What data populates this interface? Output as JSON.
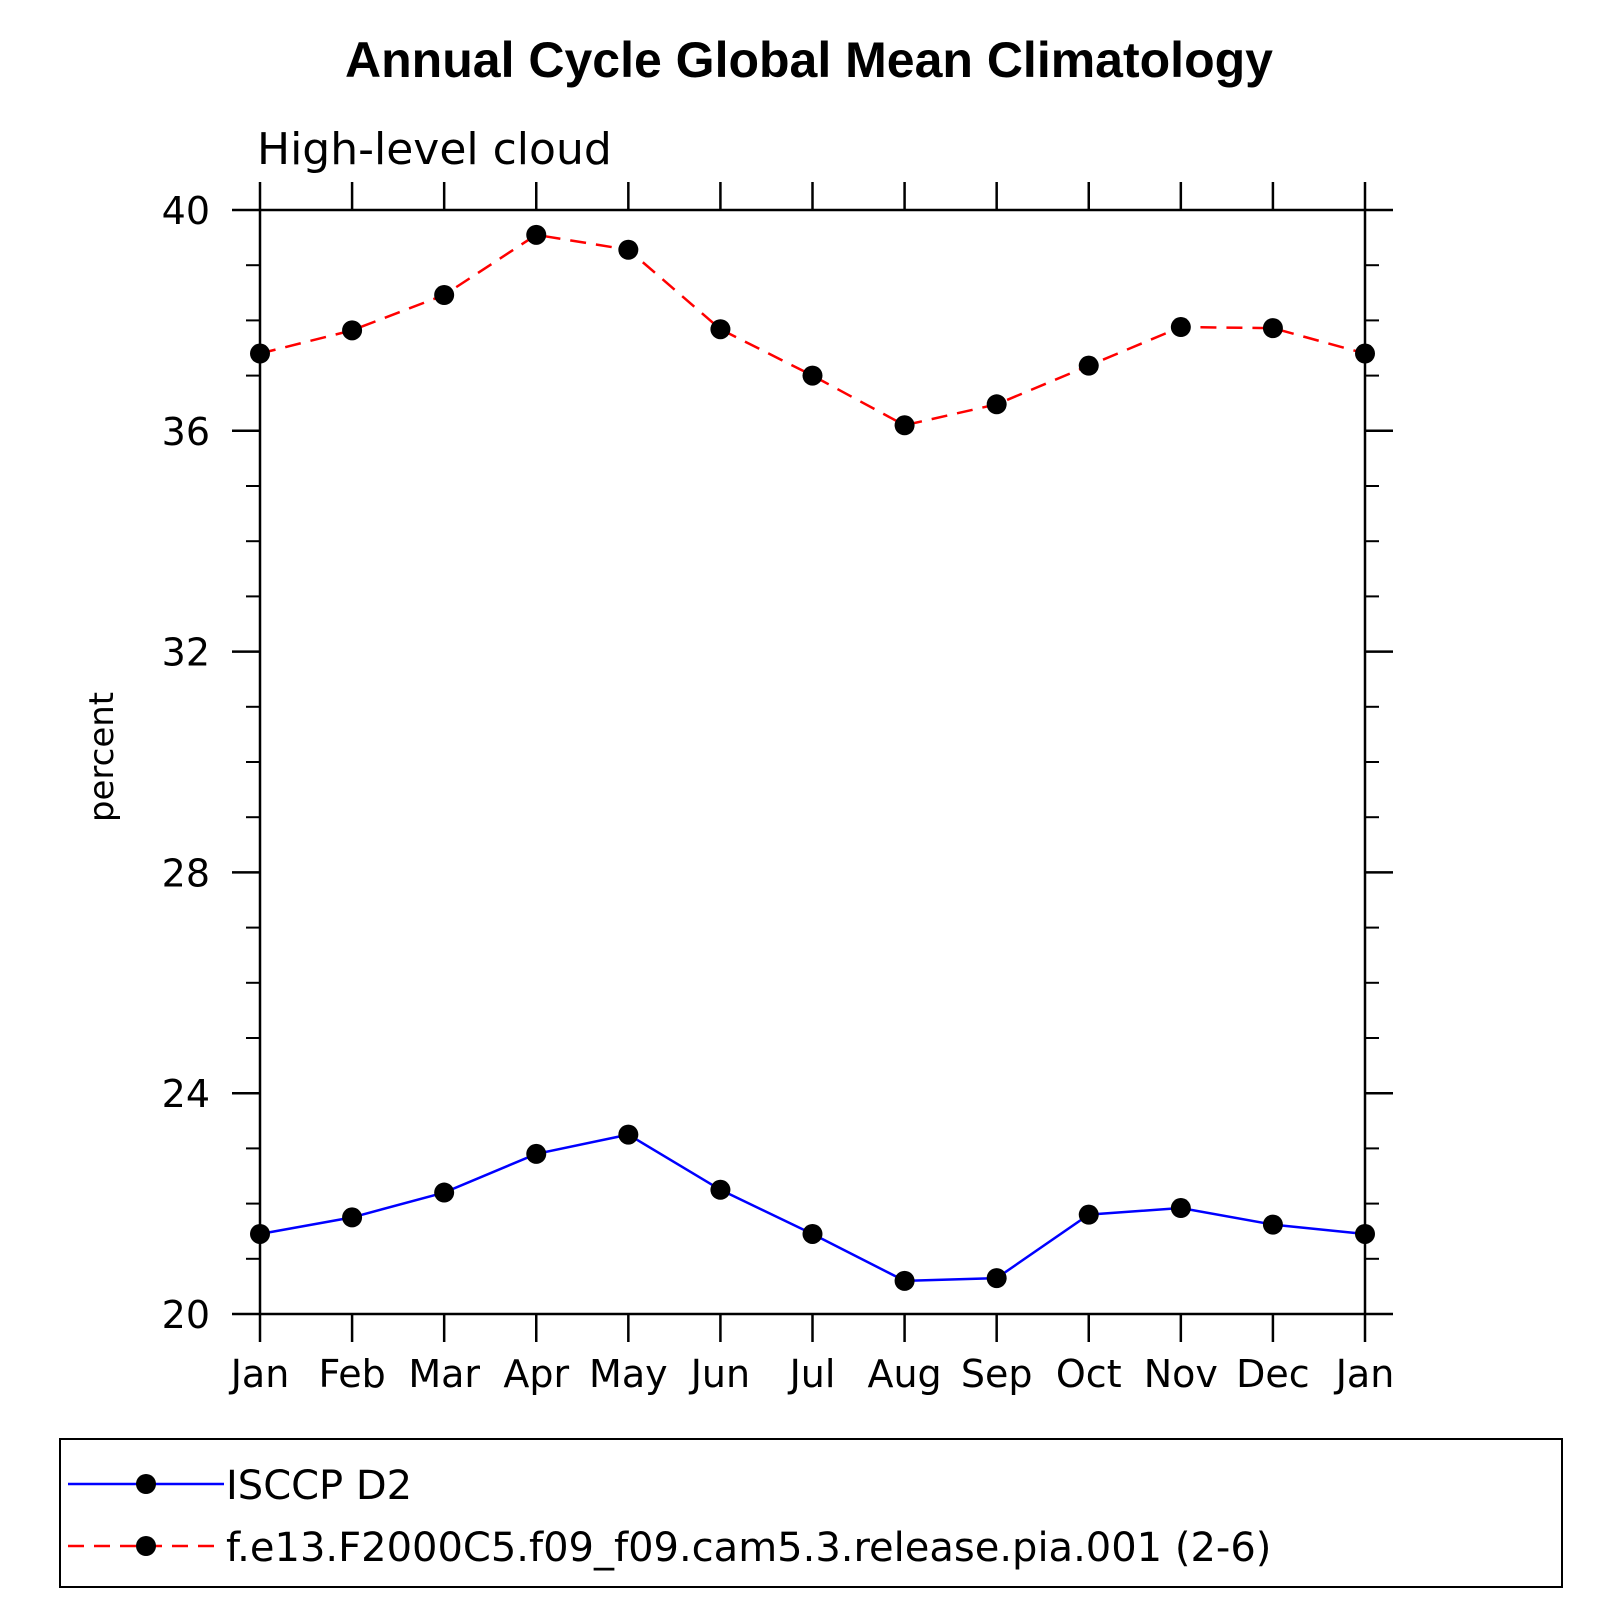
{
  "chart_data": {
    "type": "line",
    "title": "Annual Cycle Global Mean Climatology",
    "subtitle": "High-level cloud",
    "xlabel": "",
    "ylabel": "percent",
    "categories": [
      "Jan",
      "Feb",
      "Mar",
      "Apr",
      "May",
      "Jun",
      "Jul",
      "Aug",
      "Sep",
      "Oct",
      "Nov",
      "Dec",
      "Jan"
    ],
    "ylim": [
      20,
      40
    ],
    "yticks": [
      20,
      24,
      28,
      32,
      36,
      40
    ],
    "yminor_step": 1,
    "grid": false,
    "legend_position": "bottom",
    "series": [
      {
        "name": "ISCCP D2",
        "color": "#0000ff",
        "line_style": "solid",
        "marker": "filled-circle",
        "values": [
          21.45,
          21.75,
          22.2,
          22.9,
          23.25,
          22.25,
          21.45,
          20.6,
          20.65,
          21.8,
          21.92,
          21.62,
          21.45
        ]
      },
      {
        "name": "f.e13.F2000C5.f09_f09.cam5.3.release.pia.001 (2-6)",
        "color": "#ff0000",
        "line_style": "dashed",
        "marker": "filled-circle",
        "values": [
          37.4,
          37.82,
          38.46,
          39.55,
          39.28,
          37.84,
          37.0,
          36.1,
          36.48,
          37.18,
          37.88,
          37.86,
          37.4
        ]
      }
    ]
  }
}
